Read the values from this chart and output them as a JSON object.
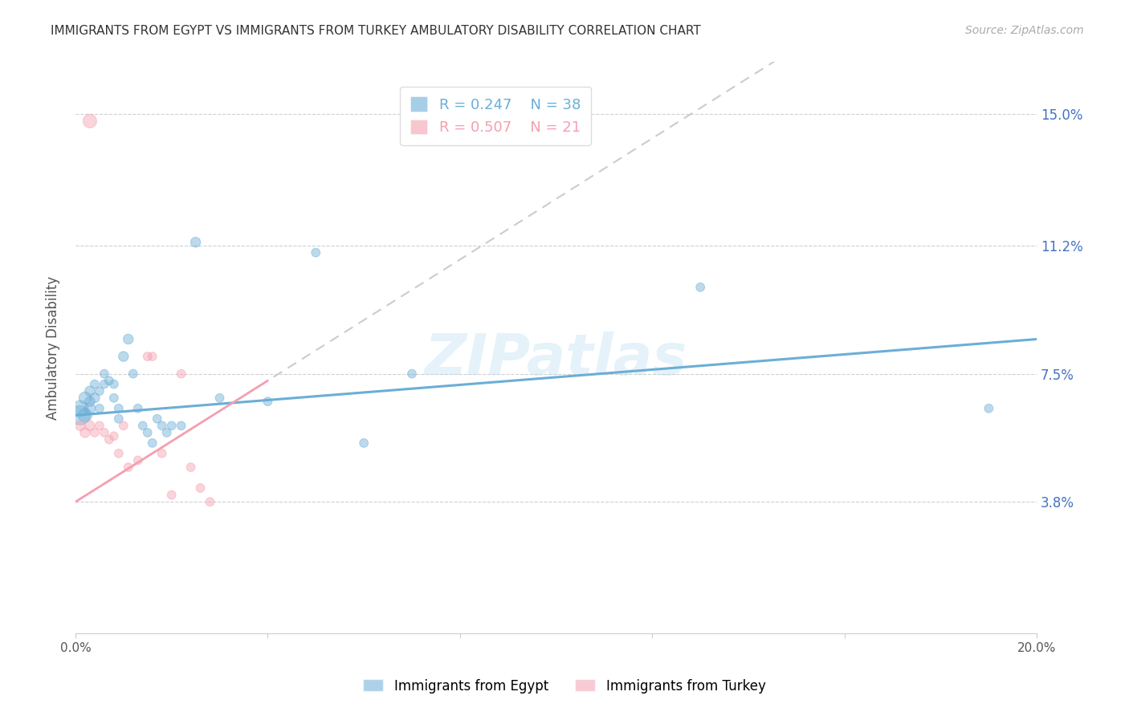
{
  "title": "IMMIGRANTS FROM EGYPT VS IMMIGRANTS FROM TURKEY AMBULATORY DISABILITY CORRELATION CHART",
  "source": "Source: ZipAtlas.com",
  "ylabel_label": "Ambulatory Disability",
  "xlim": [
    0.0,
    0.2
  ],
  "ylim": [
    0.0,
    0.165
  ],
  "yticks": [
    0.038,
    0.075,
    0.112,
    0.15
  ],
  "ytick_labels": [
    "3.8%",
    "7.5%",
    "11.2%",
    "15.0%"
  ],
  "xticks": [
    0.0,
    0.04,
    0.08,
    0.12,
    0.16,
    0.2
  ],
  "xtick_labels": [
    "0.0%",
    "",
    "",
    "",
    "",
    "20.0%"
  ],
  "egypt_color": "#6baed6",
  "turkey_color": "#f4a0b0",
  "egypt_R": 0.247,
  "egypt_N": 38,
  "turkey_R": 0.507,
  "turkey_N": 21,
  "egypt_x": [
    0.001,
    0.001,
    0.002,
    0.002,
    0.003,
    0.003,
    0.003,
    0.004,
    0.004,
    0.005,
    0.005,
    0.006,
    0.006,
    0.007,
    0.008,
    0.008,
    0.009,
    0.009,
    0.01,
    0.011,
    0.012,
    0.013,
    0.014,
    0.015,
    0.016,
    0.017,
    0.018,
    0.019,
    0.02,
    0.022,
    0.025,
    0.03,
    0.04,
    0.05,
    0.06,
    0.07,
    0.13,
    0.19
  ],
  "egypt_y": [
    0.063,
    0.065,
    0.063,
    0.068,
    0.065,
    0.067,
    0.07,
    0.068,
    0.072,
    0.065,
    0.07,
    0.072,
    0.075,
    0.073,
    0.072,
    0.068,
    0.065,
    0.062,
    0.08,
    0.085,
    0.075,
    0.065,
    0.06,
    0.058,
    0.055,
    0.062,
    0.06,
    0.058,
    0.06,
    0.06,
    0.113,
    0.068,
    0.067,
    0.11,
    0.055,
    0.075,
    0.1,
    0.065
  ],
  "egypt_size": [
    300,
    200,
    150,
    120,
    100,
    80,
    80,
    80,
    60,
    60,
    60,
    60,
    60,
    60,
    60,
    60,
    60,
    60,
    80,
    80,
    60,
    60,
    60,
    60,
    60,
    60,
    60,
    60,
    60,
    60,
    80,
    60,
    60,
    60,
    60,
    60,
    60,
    60
  ],
  "turkey_x": [
    0.001,
    0.002,
    0.003,
    0.004,
    0.005,
    0.006,
    0.007,
    0.008,
    0.009,
    0.01,
    0.011,
    0.013,
    0.015,
    0.016,
    0.018,
    0.02,
    0.022,
    0.024,
    0.026,
    0.028,
    0.003
  ],
  "turkey_y": [
    0.06,
    0.058,
    0.06,
    0.058,
    0.06,
    0.058,
    0.056,
    0.057,
    0.052,
    0.06,
    0.048,
    0.05,
    0.08,
    0.08,
    0.052,
    0.04,
    0.075,
    0.048,
    0.042,
    0.038,
    0.148
  ],
  "turkey_size": [
    80,
    80,
    80,
    60,
    60,
    60,
    60,
    60,
    60,
    60,
    60,
    60,
    60,
    60,
    60,
    60,
    60,
    60,
    60,
    60,
    150
  ],
  "watermark": "ZIPatlas",
  "bg_color": "#ffffff",
  "grid_color": "#d0d0d0"
}
